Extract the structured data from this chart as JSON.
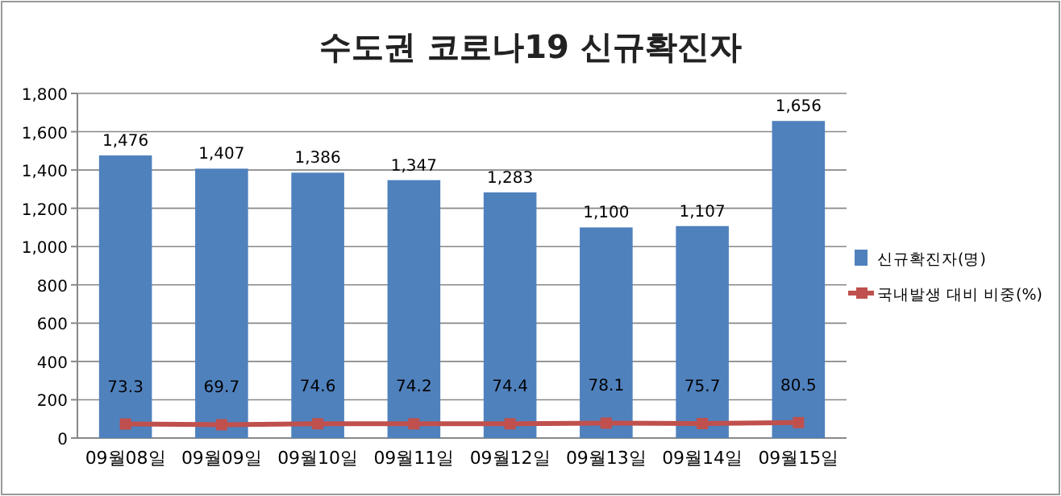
{
  "chart_data": {
    "type": "bar",
    "title": "수도권 코로나19 신규확진자",
    "categories": [
      "09월08일",
      "09월09일",
      "09월10일",
      "09월11일",
      "09월12일",
      "09월13일",
      "09월14일",
      "09월15일"
    ],
    "series": [
      {
        "name": "신규확진자(명)",
        "color": "#4f81bd",
        "values": [
          1476,
          1407,
          1386,
          1347,
          1283,
          1100,
          1107,
          1656
        ],
        "value_labels": [
          "1,476",
          "1,407",
          "1,386",
          "1,347",
          "1,283",
          "1,100",
          "1,107",
          "1,656"
        ]
      },
      {
        "name": "국내발생 대비 비중(%)",
        "type": "line",
        "color": "#c0504d",
        "marker": "square",
        "values": [
          73.3,
          69.7,
          74.6,
          74.2,
          74.4,
          78.1,
          75.7,
          80.5
        ],
        "value_labels": [
          "73.3",
          "69.7",
          "74.6",
          "74.2",
          "74.4",
          "78.1",
          "75.7",
          "80.5"
        ]
      }
    ],
    "ylim": [
      0,
      1800
    ],
    "yticks": [
      0,
      {
        "value": 200,
        "label": "200"
      },
      {
        "value": 400,
        "label": "400"
      },
      {
        "value": 600,
        "label": "600"
      },
      {
        "value": 800,
        "label": "800"
      },
      {
        "value": 1000,
        "label": "1,000"
      },
      {
        "value": 1200,
        "label": "1,200"
      },
      {
        "value": 1400,
        "label": "1,400"
      },
      {
        "value": 1600,
        "label": "1,600"
      },
      {
        "value": 1800,
        "label": "1,800"
      }
    ],
    "grid": "y",
    "legend": "right"
  }
}
